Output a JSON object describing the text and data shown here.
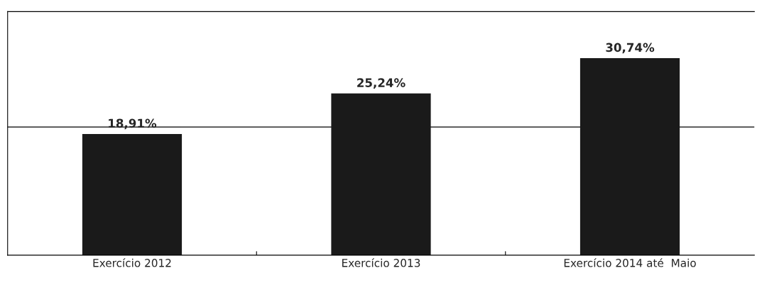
{
  "chart_data": {
    "type": "bar",
    "categories": [
      "Exercício 2012",
      "Exercício 2013",
      "Exercício 2014 até  Maio"
    ],
    "values": [
      18.91,
      25.24,
      30.74
    ],
    "value_labels": [
      "18,91%",
      "25,24%",
      "30,74%"
    ],
    "color": "#1a1a1a",
    "ylim": [
      0,
      38
    ],
    "ref_lines": [
      {
        "axis": "y",
        "value": 20,
        "color": "#000000"
      }
    ],
    "tick_labels": "x",
    "grid": false,
    "legend": false
  }
}
